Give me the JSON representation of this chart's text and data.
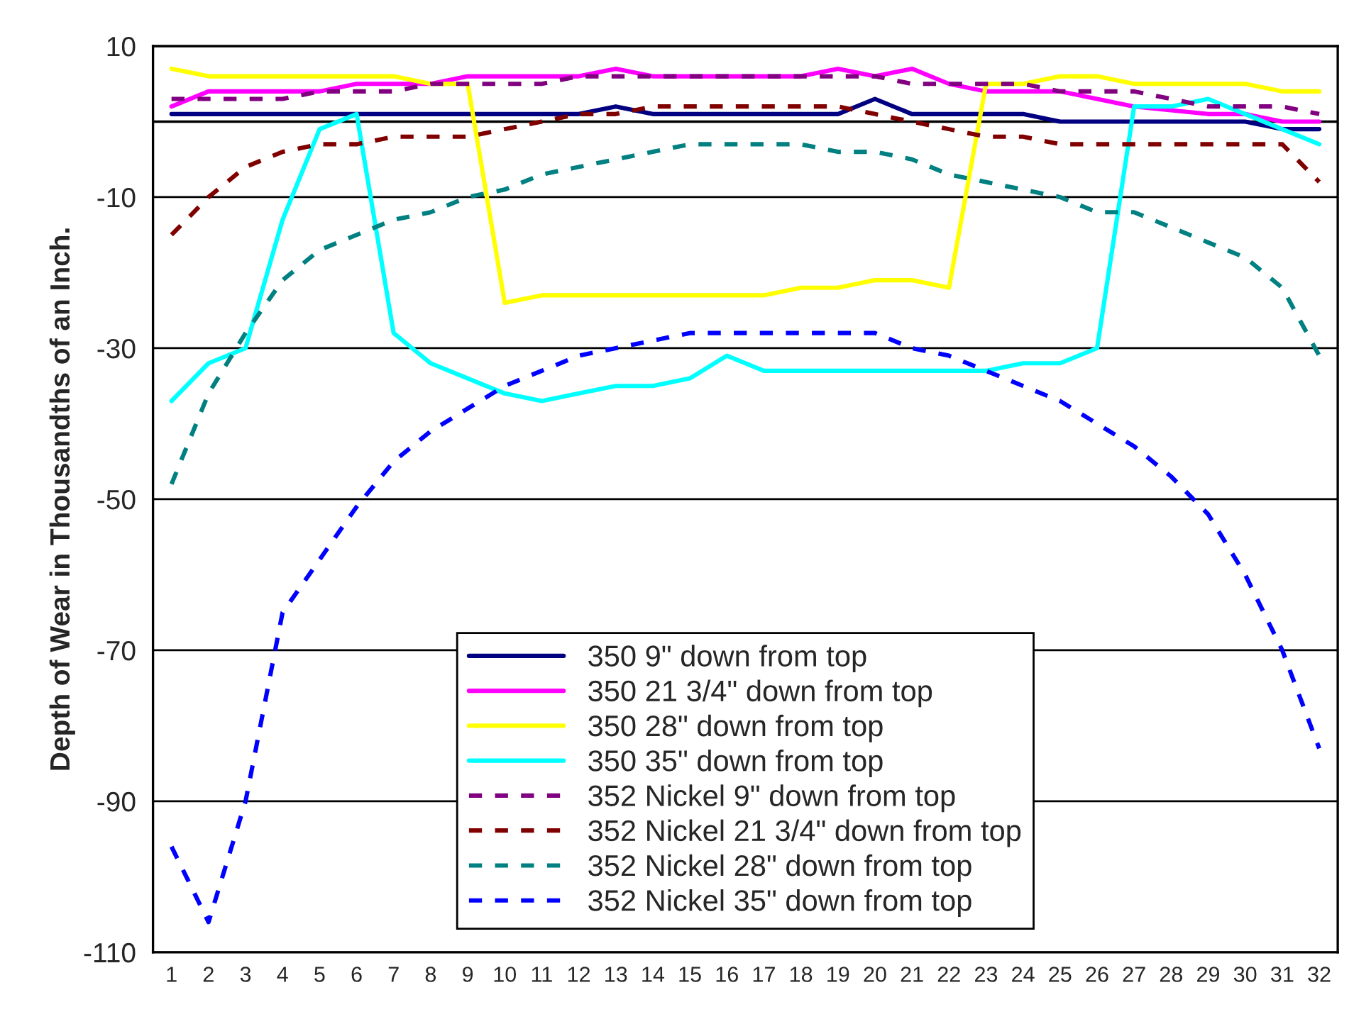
{
  "chart_data": {
    "type": "line",
    "ylabel": "Depth of Wear in Thousandths of an Inch.",
    "categories": [
      "1",
      "2",
      "3",
      "4",
      "5",
      "6",
      "7",
      "8",
      "9",
      "10",
      "11",
      "12",
      "13",
      "14",
      "15",
      "16",
      "17",
      "18",
      "19",
      "20",
      "21",
      "22",
      "23",
      "24",
      "25",
      "26",
      "27",
      "28",
      "29",
      "30",
      "31",
      "32"
    ],
    "ylim": [
      -110,
      10
    ],
    "yticks": [
      10,
      -10,
      -30,
      -50,
      -70,
      -90,
      -110
    ],
    "grid": "y",
    "legend": "bottom",
    "marker": "none",
    "ref_lines": [
      {
        "axis": "y",
        "value": 0,
        "color": "#000000",
        "line_style": "solid"
      }
    ],
    "series": [
      {
        "name": "350 9\" down from top",
        "color": "#000080",
        "line_style": "solid",
        "values": [
          1,
          1,
          1,
          1,
          1,
          1,
          1,
          1,
          1,
          1,
          1,
          1,
          2,
          1,
          1,
          1,
          1,
          1,
          1,
          3,
          1,
          1,
          1,
          1,
          0,
          0,
          0,
          0,
          0,
          0,
          -1,
          -1
        ]
      },
      {
        "name": "350 21 3/4\" down from top",
        "color": "#ff00ff",
        "line_style": "solid",
        "values": [
          2,
          4,
          4,
          4,
          4,
          5,
          5,
          5,
          6,
          6,
          6,
          6,
          7,
          6,
          6,
          6,
          6,
          6,
          7,
          6,
          7,
          5,
          4,
          4,
          4,
          3,
          2,
          1.5,
          1,
          1,
          0,
          0
        ]
      },
      {
        "name": "350 28\" down from top",
        "color": "#ffff00",
        "line_style": "solid",
        "values": [
          7,
          6,
          6,
          6,
          6,
          6,
          6,
          5,
          5,
          -24,
          -23,
          -23,
          -23,
          -23,
          -23,
          -23,
          -23,
          -22,
          -22,
          -21,
          -21,
          -22,
          5,
          5,
          6,
          6,
          5,
          5,
          5,
          5,
          4,
          4
        ]
      },
      {
        "name": "350 35\" down from top",
        "color": "#00ffff",
        "line_style": "solid",
        "values": [
          -37,
          -32,
          -30,
          -13,
          -1,
          1,
          -28,
          -32,
          -34,
          -36,
          -37,
          -36,
          -35,
          -35,
          -34,
          -31,
          -33,
          -33,
          -33,
          -33,
          -33,
          -33,
          -33,
          -32,
          -32,
          -30,
          2,
          2,
          3,
          1,
          -1,
          -3
        ]
      },
      {
        "name": "352 Nickel 9\" down from top",
        "color": "#800080",
        "line_style": "dashed",
        "values": [
          3,
          3,
          3,
          3,
          4,
          4,
          4,
          5,
          5,
          5,
          5,
          6,
          6,
          6,
          6,
          6,
          6,
          6,
          6,
          6,
          5,
          5,
          5,
          5,
          4,
          4,
          4,
          3,
          2,
          2,
          2,
          1
        ]
      },
      {
        "name": "352 Nickel 21 3/4\" down from top",
        "color": "#800000",
        "line_style": "dashed",
        "values": [
          -15,
          -10,
          -6,
          -4,
          -3,
          -3,
          -2,
          -2,
          -2,
          -1,
          0,
          1,
          1,
          2,
          2,
          2,
          2,
          2,
          2,
          1,
          0,
          -1,
          -2,
          -2,
          -3,
          -3,
          -3,
          -3,
          -3,
          -3,
          -3,
          -8
        ]
      },
      {
        "name": "352 Nickel 28\" down from top",
        "color": "#008080",
        "line_style": "dashed",
        "values": [
          -48,
          -36,
          -28,
          -21,
          -17,
          -15,
          -13,
          -12,
          -10,
          -9,
          -7,
          -6,
          -5,
          -4,
          -3,
          -3,
          -3,
          -3,
          -4,
          -4,
          -5,
          -7,
          -8,
          -9,
          -10,
          -12,
          -12,
          -14,
          -16,
          -18,
          -22,
          -31
        ]
      },
      {
        "name": "352 Nickel 35\" down from top",
        "color": "#0000ff",
        "line_style": "dashed",
        "values": [
          -96,
          -106,
          -90,
          -65,
          -58,
          -51,
          -45,
          -41,
          -38,
          -35,
          -33,
          -31,
          -30,
          -29,
          -28,
          -28,
          -28,
          -28,
          -28,
          -28,
          -30,
          -31,
          -33,
          -35,
          -37,
          -40,
          -43,
          -47,
          -52,
          -60,
          -70,
          -83
        ]
      }
    ]
  }
}
